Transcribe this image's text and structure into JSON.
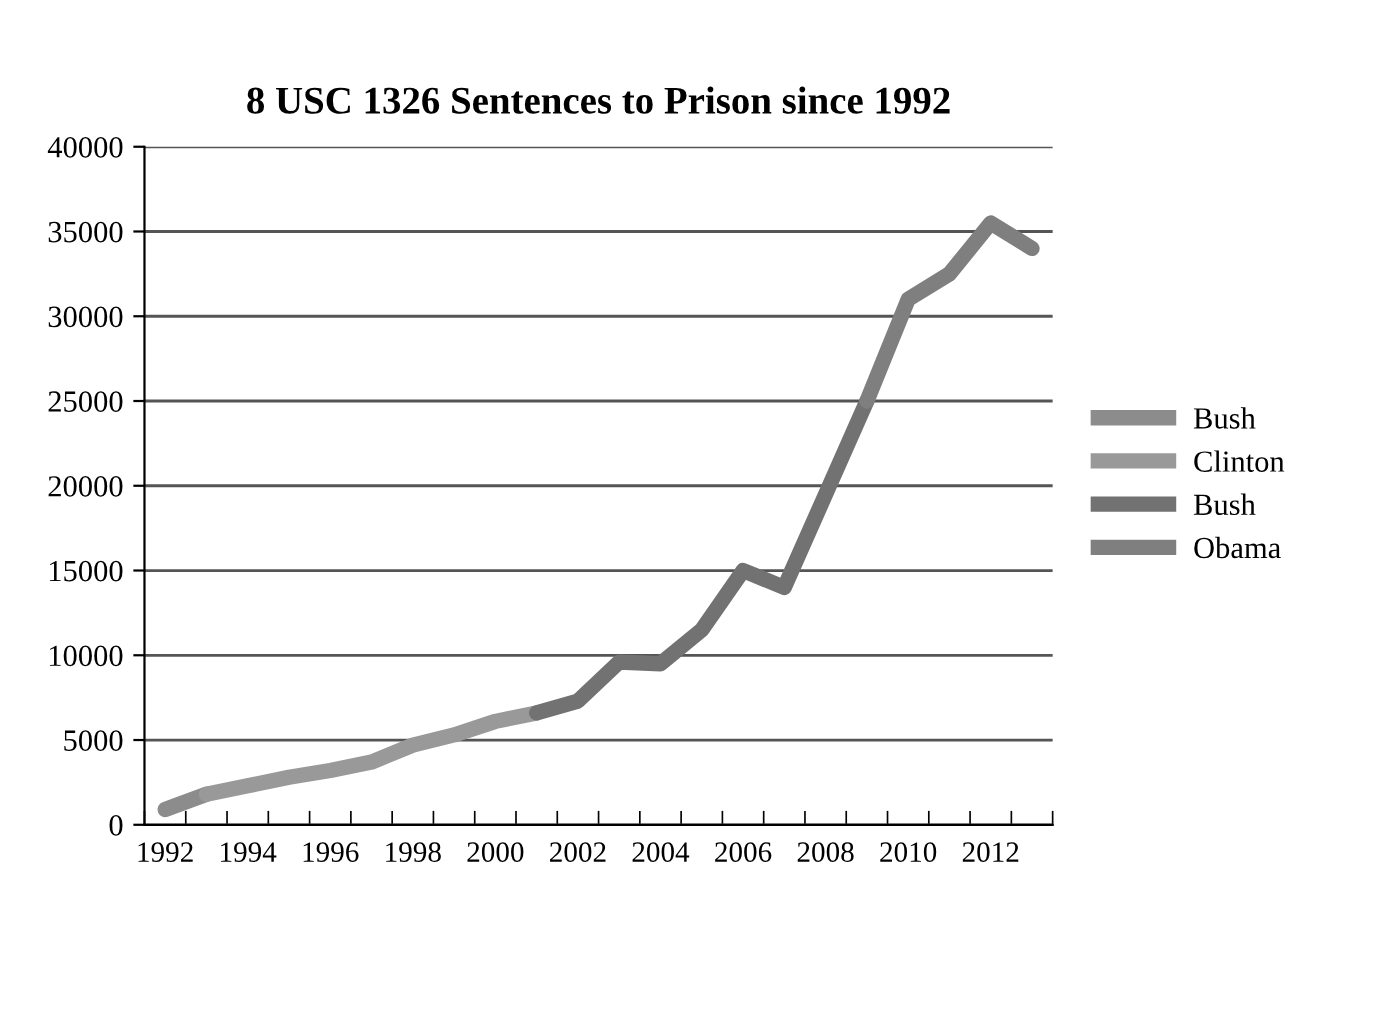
{
  "chart_data": {
    "type": "line",
    "title": "8 USC 1326 Sentences to Prison since 1992",
    "categories": [
      "1992",
      null,
      "1994",
      null,
      "1996",
      null,
      "1998",
      null,
      "2000",
      null,
      "2002",
      null,
      "2004",
      null,
      "2006",
      null,
      "2008",
      null,
      "2010",
      null,
      "2012",
      null
    ],
    "series": [
      {
        "name": "Bush",
        "color": "#8c8c8c",
        "values": [
          900,
          1800,
          null,
          null,
          null,
          null,
          null,
          null,
          null,
          null,
          null,
          null,
          null,
          null,
          null,
          null,
          null,
          null,
          null,
          null,
          null,
          null
        ]
      },
      {
        "name": "Clinton",
        "color": "#999999",
        "values": [
          null,
          1800,
          2300,
          2800,
          3200,
          3700,
          4700,
          5300,
          6100,
          6600,
          null,
          null,
          null,
          null,
          null,
          null,
          null,
          null,
          null,
          null,
          null,
          null
        ]
      },
      {
        "name": "Bush",
        "color": "#727272",
        "values": [
          null,
          null,
          null,
          null,
          null,
          null,
          null,
          null,
          null,
          6600,
          7300,
          9600,
          9500,
          11500,
          15000,
          14000,
          19500,
          25000,
          null,
          null,
          null,
          null
        ]
      },
      {
        "name": "Obama",
        "color": "#7f7f7f",
        "values": [
          null,
          null,
          null,
          null,
          null,
          null,
          null,
          null,
          null,
          null,
          null,
          null,
          null,
          null,
          null,
          null,
          null,
          25000,
          31000,
          32500,
          35500,
          34000
        ]
      }
    ],
    "ylim": [
      0,
      40000
    ],
    "yticks": [
      0,
      5000,
      10000,
      15000,
      20000,
      25000,
      30000,
      35000,
      40000
    ],
    "grid": "y",
    "legend": "right",
    "marker": "none",
    "line_style": "solid"
  }
}
